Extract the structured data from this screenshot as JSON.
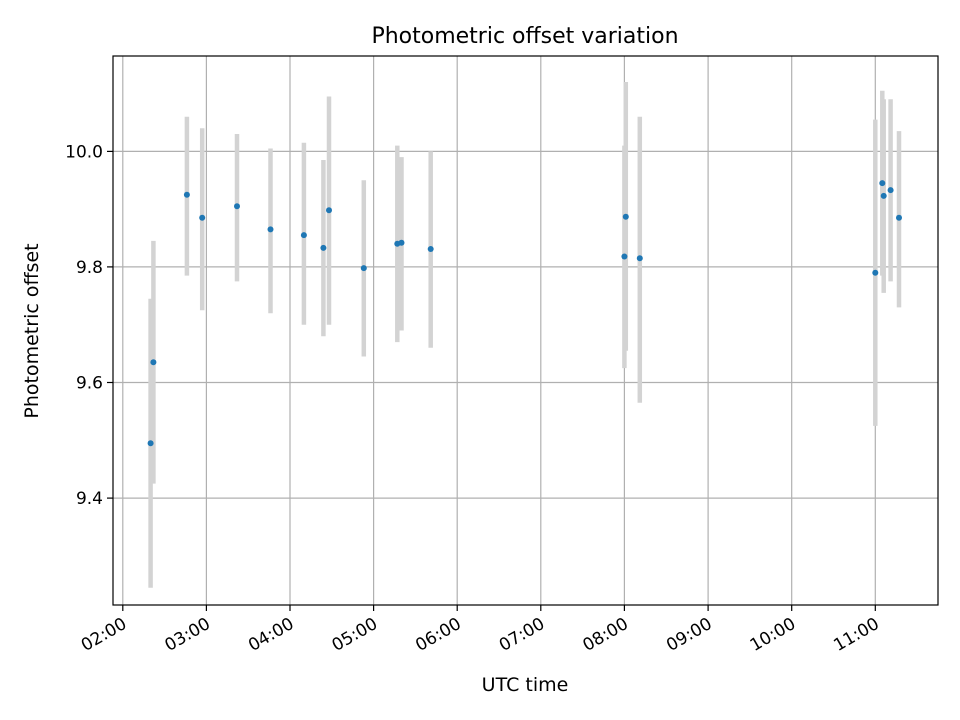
{
  "chart_data": {
    "type": "scatter",
    "title": "Photometric offset variation",
    "xlabel": "UTC time",
    "ylabel": "Photometric offset",
    "x_ticks": [
      "02:00",
      "03:00",
      "04:00",
      "05:00",
      "06:00",
      "07:00",
      "08:00",
      "09:00",
      "10:00",
      "11:00"
    ],
    "y_ticks": [
      "9.4",
      "9.6",
      "9.8",
      "10.0"
    ],
    "xlim": [
      "01:53",
      "11:45"
    ],
    "ylim": [
      9.215,
      10.165
    ],
    "grid": true,
    "colors": {
      "points": "#1f77b4",
      "error_bars": "#d3d3d3",
      "grid": "#b0b0b0"
    },
    "series": [
      {
        "points": [
          {
            "x": "02:20",
            "y": 9.495,
            "lo": 9.245,
            "hi": 9.745
          },
          {
            "x": "02:22",
            "y": 9.635,
            "lo": 9.425,
            "hi": 9.845
          },
          {
            "x": "02:46",
            "y": 9.925,
            "lo": 9.785,
            "hi": 10.06
          },
          {
            "x": "02:57",
            "y": 9.885,
            "lo": 9.725,
            "hi": 10.04
          },
          {
            "x": "03:22",
            "y": 9.905,
            "lo": 9.775,
            "hi": 10.03
          },
          {
            "x": "03:46",
            "y": 9.865,
            "lo": 9.72,
            "hi": 10.005
          },
          {
            "x": "04:10",
            "y": 9.855,
            "lo": 9.7,
            "hi": 10.015
          },
          {
            "x": "04:24",
            "y": 9.833,
            "lo": 9.68,
            "hi": 9.985
          },
          {
            "x": "04:28",
            "y": 9.898,
            "lo": 9.7,
            "hi": 10.095
          },
          {
            "x": "04:53",
            "y": 9.798,
            "lo": 9.645,
            "hi": 9.95
          },
          {
            "x": "05:17",
            "y": 9.84,
            "lo": 9.67,
            "hi": 10.01
          },
          {
            "x": "05:20",
            "y": 9.842,
            "lo": 9.69,
            "hi": 9.99
          },
          {
            "x": "05:41",
            "y": 9.831,
            "lo": 9.66,
            "hi": 10.0
          },
          {
            "x": "08:00",
            "y": 9.818,
            "lo": 9.625,
            "hi": 10.01
          },
          {
            "x": "08:01",
            "y": 9.887,
            "lo": 9.655,
            "hi": 10.12
          },
          {
            "x": "08:11",
            "y": 9.815,
            "lo": 9.565,
            "hi": 10.06
          },
          {
            "x": "11:00",
            "y": 9.79,
            "lo": 9.525,
            "hi": 10.055
          },
          {
            "x": "11:05",
            "y": 9.945,
            "lo": 9.785,
            "hi": 10.105
          },
          {
            "x": "11:06",
            "y": 9.923,
            "lo": 9.755,
            "hi": 10.09
          },
          {
            "x": "11:11",
            "y": 9.933,
            "lo": 9.775,
            "hi": 10.09
          },
          {
            "x": "11:17",
            "y": 9.885,
            "lo": 9.73,
            "hi": 10.035
          }
        ]
      }
    ]
  }
}
